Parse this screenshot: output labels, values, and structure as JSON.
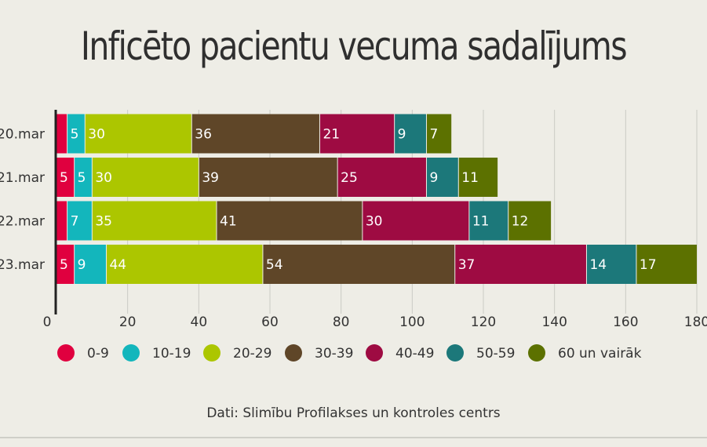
{
  "chart_data": {
    "type": "bar",
    "orientation": "horizontal",
    "stacked": true,
    "title": "Inficēto pacientu vecuma sadalījums",
    "source": "Dati: Slimību Profilakses un kontroles centrs",
    "categories": [
      "20.mar",
      "21.mar",
      "22.mar",
      "23.mar"
    ],
    "xlim": [
      0,
      180
    ],
    "xticks": [
      0,
      20,
      40,
      60,
      80,
      100,
      120,
      140,
      160,
      180
    ],
    "grid": true,
    "legend_position": "bottom",
    "series": [
      {
        "name": "0-9",
        "color": "#e0003f",
        "values": [
          3,
          5,
          3,
          5
        ],
        "labels": [
          "",
          "5",
          "",
          "5"
        ]
      },
      {
        "name": "10-19",
        "color": "#13b6bc",
        "values": [
          5,
          5,
          7,
          9
        ],
        "labels": [
          "5",
          "5",
          "7",
          "9"
        ]
      },
      {
        "name": "20-29",
        "color": "#acc600",
        "values": [
          30,
          30,
          35,
          44
        ],
        "labels": [
          "30",
          "30",
          "35",
          "44"
        ]
      },
      {
        "name": "30-39",
        "color": "#5f4628",
        "values": [
          36,
          39,
          41,
          54
        ],
        "labels": [
          "36",
          "39",
          "41",
          "54"
        ]
      },
      {
        "name": "40-49",
        "color": "#9e0b42",
        "values": [
          21,
          25,
          30,
          37
        ],
        "labels": [
          "21",
          "25",
          "30",
          "37"
        ]
      },
      {
        "name": "50-59",
        "color": "#1c787a",
        "values": [
          9,
          9,
          11,
          14
        ],
        "labels": [
          "9",
          "9",
          "11",
          "14"
        ]
      },
      {
        "name": "60 un vairāk",
        "color": "#5c7100",
        "values": [
          7,
          11,
          12,
          17
        ],
        "labels": [
          "7",
          "11",
          "12",
          "17"
        ]
      }
    ]
  }
}
